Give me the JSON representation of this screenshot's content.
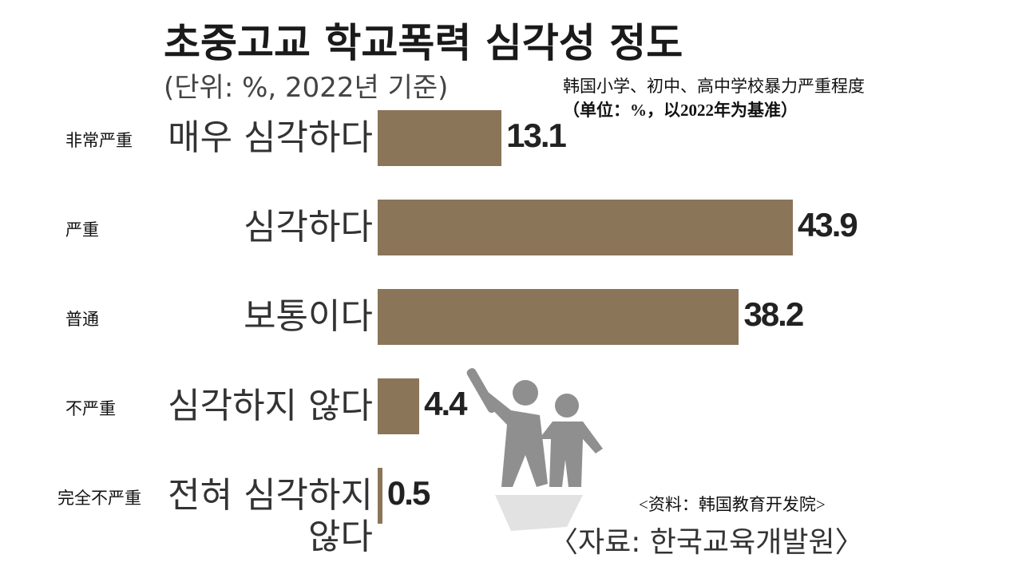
{
  "chart_data": {
    "type": "bar",
    "orientation": "horizontal",
    "title": "초중고교 학교폭력 심각성 정도",
    "subtitle": "(단위: %, 2022년 기준)",
    "title_translation": "韩国小学、初中、高中学校暴力严重程度",
    "subtitle_translation": "（单位：%，以2022年为基准）",
    "categories": [
      "매우 심각하다",
      "심각하다",
      "보통이다",
      "심각하지 않다",
      "전혀 심각하지 않다"
    ],
    "category_translations": [
      "非常严重",
      "严重",
      "普通",
      "不严重",
      "完全不严重"
    ],
    "values": [
      13.1,
      43.9,
      38.2,
      4.4,
      0.5
    ],
    "color": "#8b7558",
    "source": "〈자료: 한국교육개발원〉",
    "source_translation": "<资料：韩国教育开发院>"
  }
}
